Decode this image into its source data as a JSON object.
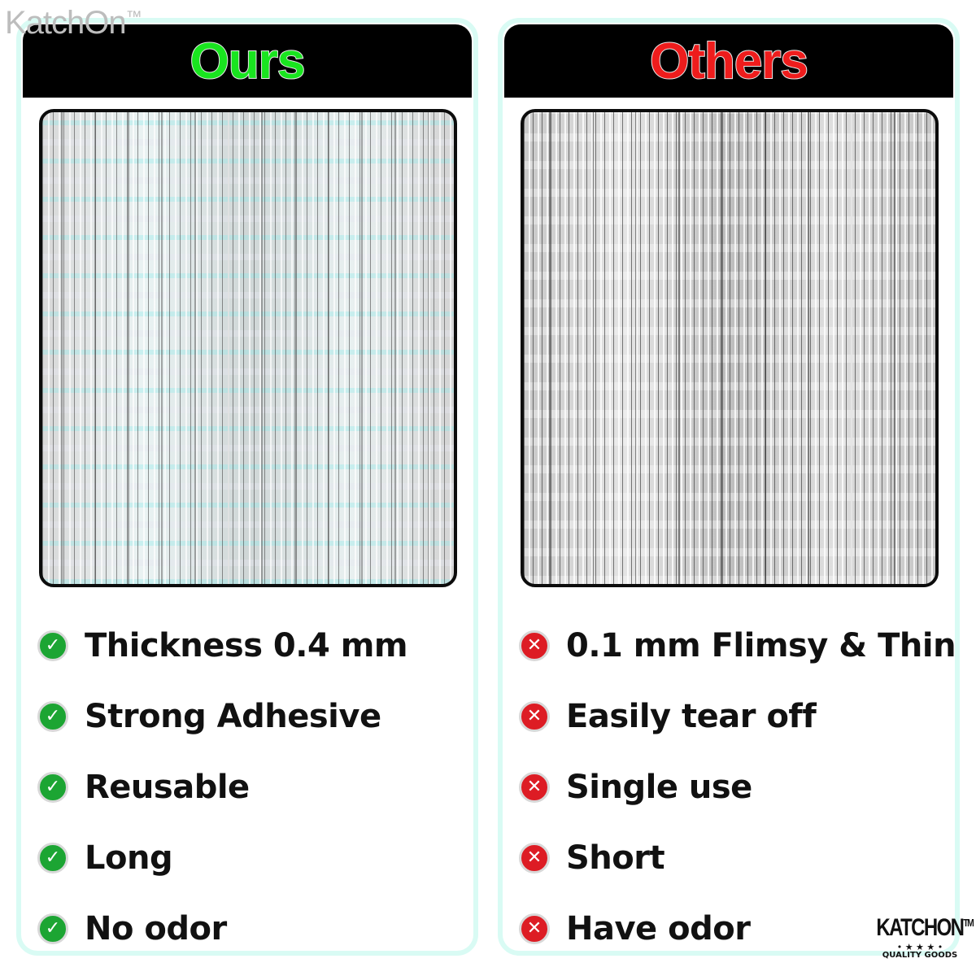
{
  "watermark": "KatchOn™",
  "ours": {
    "title": "Ours",
    "title_color": "#19e51f",
    "items": [
      {
        "icon": "check-circle-icon",
        "label": "Thickness 0.4 mm"
      },
      {
        "icon": "check-circle-icon",
        "label": "Strong Adhesive"
      },
      {
        "icon": "check-circle-icon",
        "label": "Reusable"
      },
      {
        "icon": "check-circle-icon",
        "label": "Long"
      },
      {
        "icon": "check-circle-icon",
        "label": "No odor"
      }
    ]
  },
  "others": {
    "title": "Others",
    "title_color": "#ee1c1c",
    "items": [
      {
        "icon": "x-circle-icon",
        "label": "0.1 mm Flimsy & Thin"
      },
      {
        "icon": "x-circle-icon",
        "label": "Easily tear off"
      },
      {
        "icon": "x-circle-icon",
        "label": "Single use"
      },
      {
        "icon": "x-circle-icon",
        "label": "Short"
      },
      {
        "icon": "x-circle-icon",
        "label": "Have odor"
      }
    ]
  },
  "logo": {
    "name": "KATCHON",
    "tm": "TM",
    "stars": "• ★ ★ ★ •",
    "tagline": "QUALITY GOODS"
  }
}
